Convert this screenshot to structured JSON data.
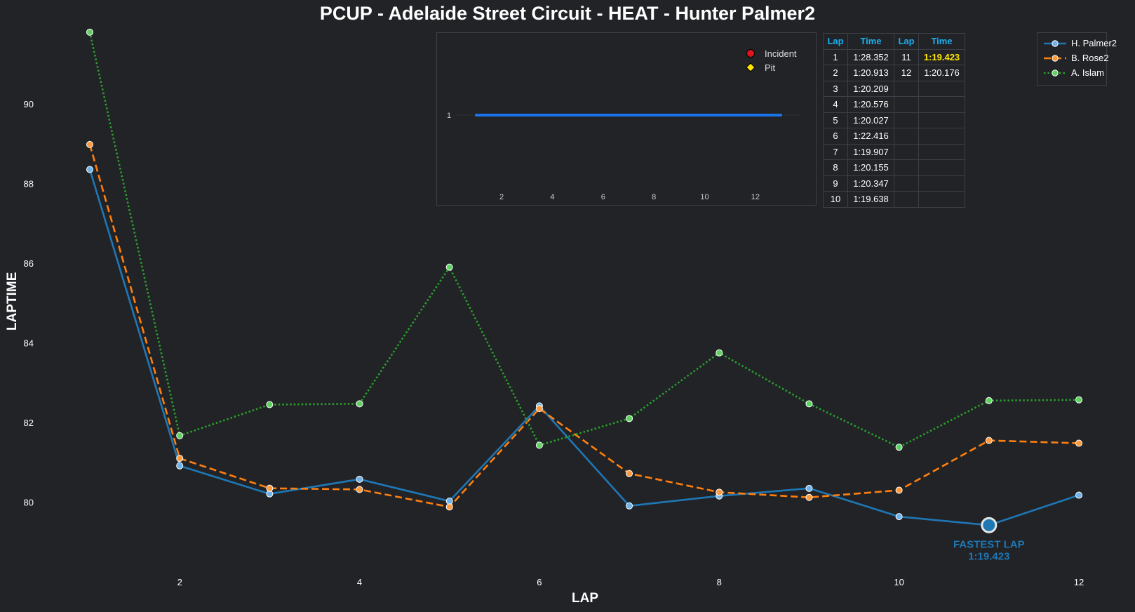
{
  "title": "PCUP - Adelaide Street Circuit - HEAT - Hunter Palmer2",
  "chart_data": {
    "type": "line",
    "xlabel": "LAP",
    "ylabel": "LAPTIME",
    "xlim": [
      1,
      12
    ],
    "ylim": [
      78.3,
      91.85
    ],
    "x_ticks": [
      2,
      4,
      6,
      8,
      10,
      12
    ],
    "y_ticks": [
      80,
      82,
      84,
      86,
      88,
      90
    ],
    "grid": false,
    "legend_position": "top-right",
    "x": [
      1,
      2,
      3,
      4,
      5,
      6,
      7,
      8,
      9,
      10,
      11,
      12
    ],
    "series": [
      {
        "name": "H. Palmer2",
        "color": "#1f77b4",
        "marker_color": "#6fb3ea",
        "style": "solid",
        "values": [
          88.352,
          80.913,
          80.209,
          80.576,
          80.027,
          82.416,
          79.907,
          80.155,
          80.347,
          79.638,
          79.423,
          80.176
        ]
      },
      {
        "name": "B. Rose2",
        "color": "#ff7f0e",
        "marker_color": "#ff9a3d",
        "style": "dashed",
        "values": [
          88.98,
          81.1,
          80.35,
          80.32,
          79.88,
          82.35,
          80.72,
          80.25,
          80.12,
          80.3,
          81.55,
          81.48
        ]
      },
      {
        "name": "A. Islam",
        "color": "#2ca02c",
        "marker_color": "#5fd35f",
        "style": "dotted",
        "values": [
          91.8,
          81.67,
          82.45,
          82.47,
          85.9,
          81.43,
          82.1,
          83.75,
          82.47,
          81.38,
          82.55,
          82.57
        ]
      }
    ],
    "annotation": {
      "text": "FASTEST LAP",
      "time": "1:19.423",
      "x": 11,
      "y": 79.423
    },
    "inset": {
      "type": "line",
      "xlim": [
        0.2,
        13.8
      ],
      "x_ticks": [
        2,
        4,
        6,
        8,
        10,
        12
      ],
      "y_ticks": [
        1
      ],
      "position_line": {
        "x_start": 1,
        "x_end": 13,
        "value": 1,
        "color": "#1a73e8"
      },
      "legend": [
        {
          "label": "Incident",
          "marker": "circle",
          "color": "#e0141e"
        },
        {
          "label": "Pit",
          "marker": "diamond",
          "color": "#ffe600"
        }
      ]
    },
    "table": {
      "headers": [
        "Lap",
        "Time",
        "Lap",
        "Time"
      ],
      "rows": [
        [
          "1",
          "1:28.352",
          "11",
          "1:19.423"
        ],
        [
          "2",
          "1:20.913",
          "12",
          "1:20.176"
        ],
        [
          "3",
          "1:20.209",
          "",
          ""
        ],
        [
          "4",
          "1:20.576",
          "",
          ""
        ],
        [
          "5",
          "1:20.027",
          "",
          ""
        ],
        [
          "6",
          "1:22.416",
          "",
          ""
        ],
        [
          "7",
          "1:19.907",
          "",
          ""
        ],
        [
          "8",
          "1:20.155",
          "",
          ""
        ],
        [
          "9",
          "1:20.347",
          "",
          ""
        ],
        [
          "10",
          "1:19.638",
          "",
          ""
        ]
      ],
      "highlight_color": "#ffe600",
      "header_color": "#1ab0f0"
    }
  }
}
